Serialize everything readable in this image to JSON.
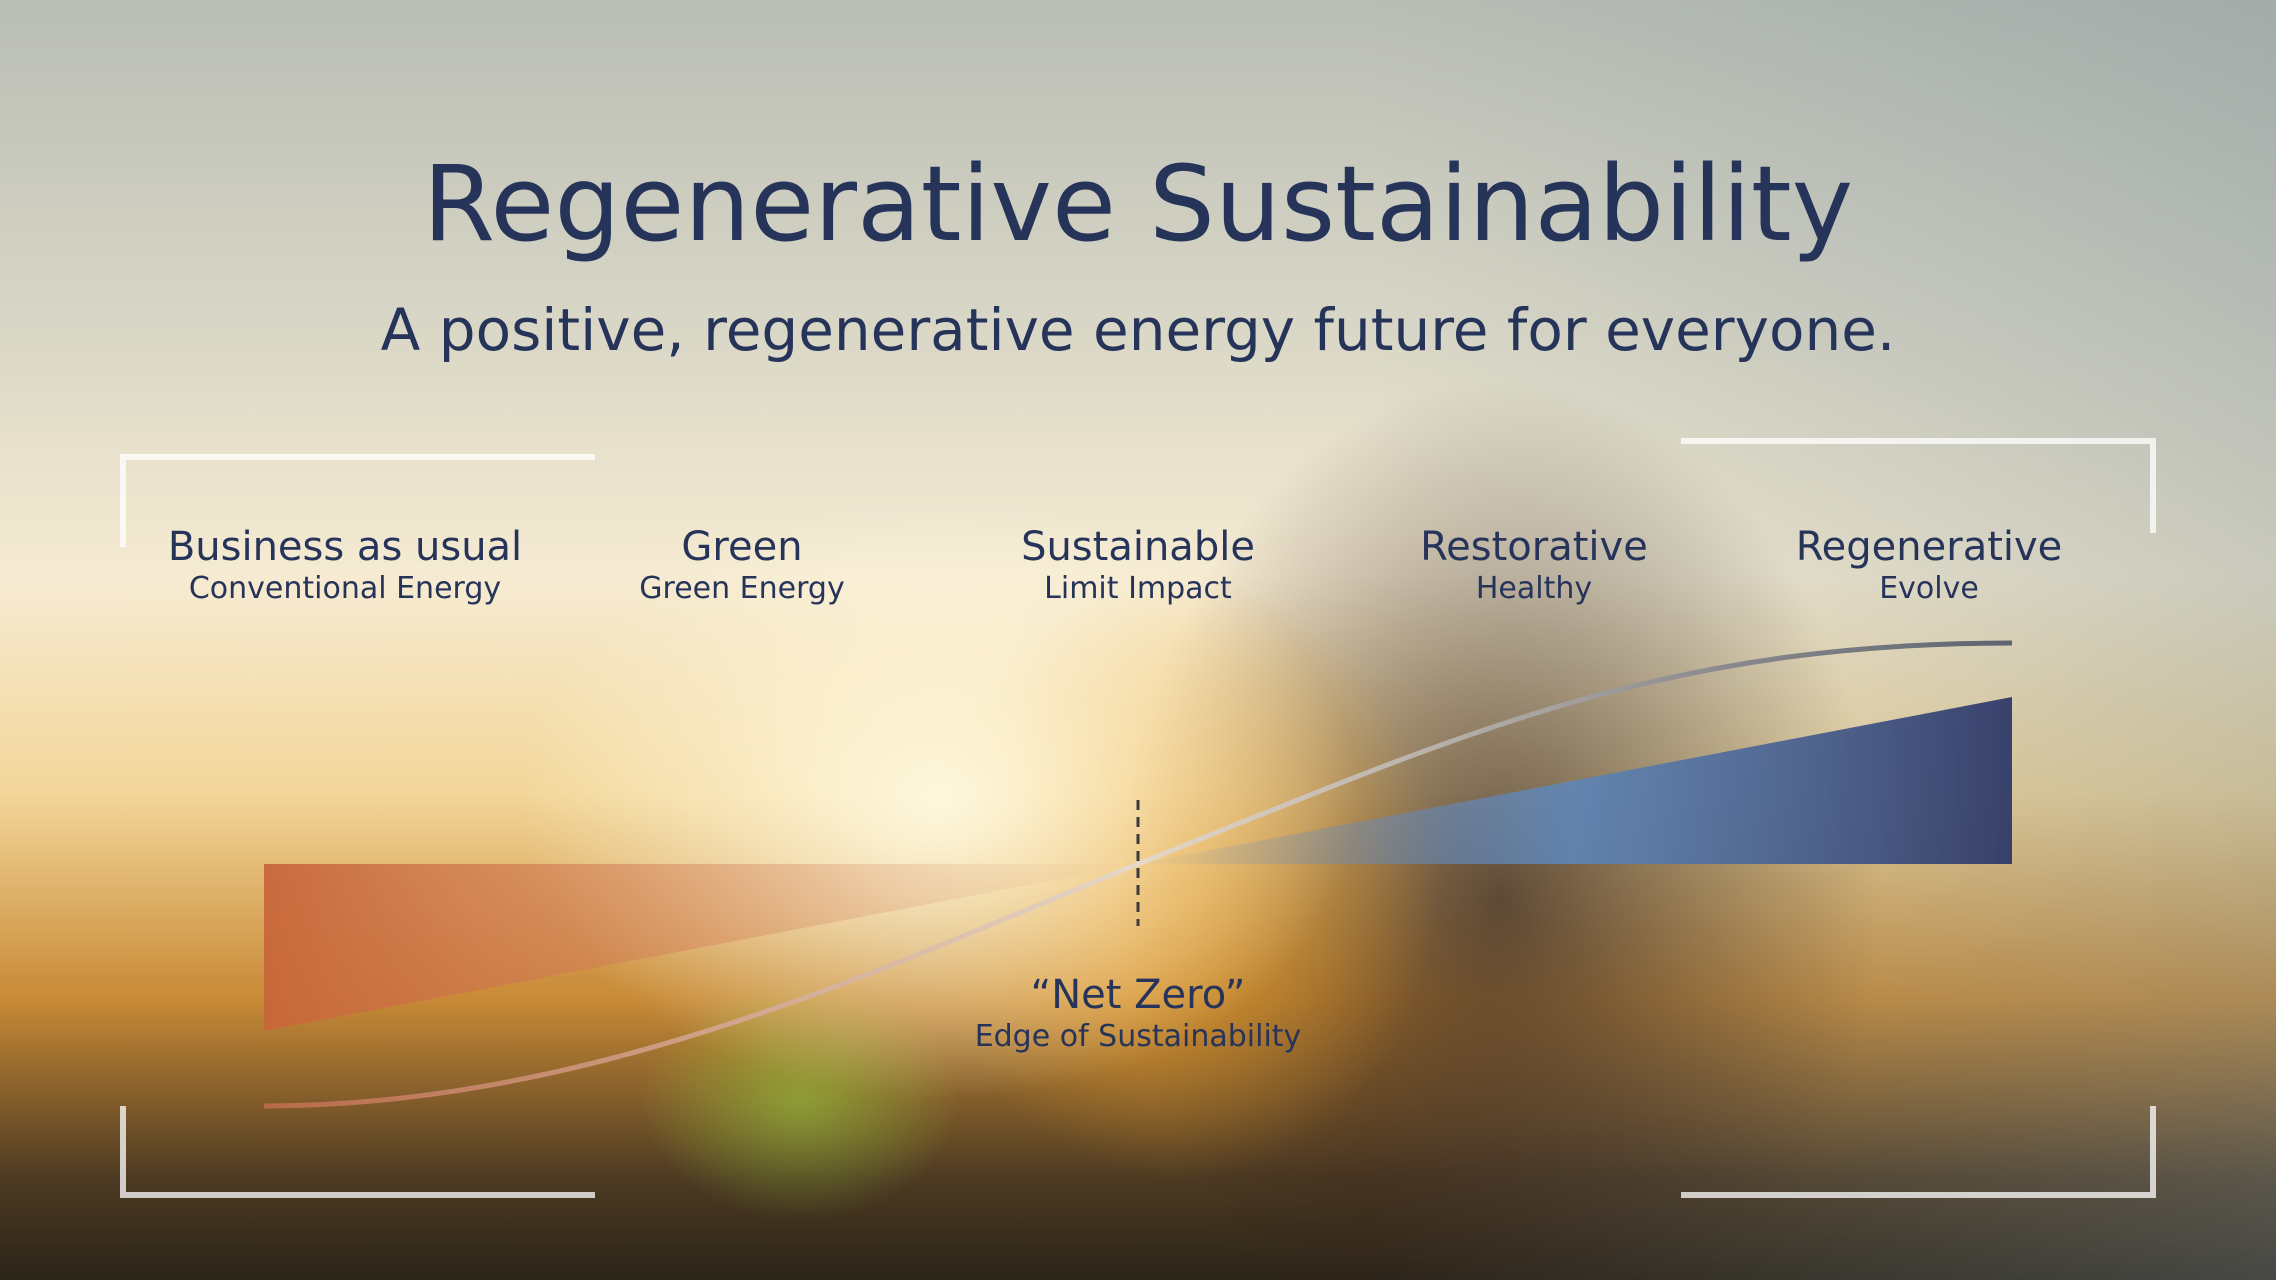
{
  "header": {
    "title": "Regenerative Sustainability",
    "subtitle": "A positive, regenerative energy future for everyone."
  },
  "stages": [
    {
      "label": "Business as usual",
      "sublabel": "Conventional Energy"
    },
    {
      "label": "Green",
      "sublabel": "Green Energy"
    },
    {
      "label": "Sustainable",
      "sublabel": "Limit Impact"
    },
    {
      "label": "Restorative",
      "sublabel": "Healthy"
    },
    {
      "label": "Regenerative",
      "sublabel": "Evolve"
    }
  ],
  "midpoint": {
    "label": "“Net Zero”",
    "sublabel": "Edge of Sustainability"
  }
}
